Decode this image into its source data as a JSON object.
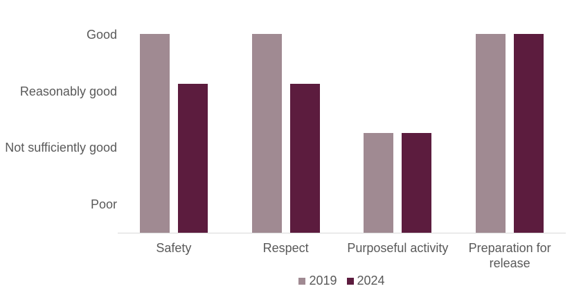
{
  "chart_data": {
    "type": "bar",
    "categories": [
      "Safety",
      "Respect",
      "Purposeful activity",
      "Preparation for release"
    ],
    "series": [
      {
        "name": "2019",
        "color": "#a08a92",
        "values": [
          4,
          4,
          2,
          4
        ],
        "ratings": [
          "Good",
          "Good",
          "Not sufficiently good",
          "Good"
        ]
      },
      {
        "name": "2024",
        "color": "#5c1c3e",
        "values": [
          3,
          3,
          2,
          4
        ],
        "ratings": [
          "Reasonably good",
          "Reasonably good",
          "Not sufficiently good",
          "Good"
        ]
      }
    ],
    "y_ticks": [
      {
        "value": 4,
        "label": "Good"
      },
      {
        "value": 3,
        "label": "Reasonably good"
      },
      {
        "value": 2,
        "label": "Not sufficiently good"
      },
      {
        "value": 1,
        "label": "Poor"
      }
    ],
    "ylim": [
      0,
      4
    ],
    "xlabel": "",
    "ylabel": "",
    "grid": false,
    "legend": {
      "position": "bottom-center",
      "entries": [
        "2019",
        "2024"
      ]
    }
  },
  "colors": {
    "background": "#ffffff",
    "axis_line": "#d9d9d9",
    "text": "#595959",
    "series_2019": "#a08a92",
    "series_2024": "#5c1c3e"
  }
}
